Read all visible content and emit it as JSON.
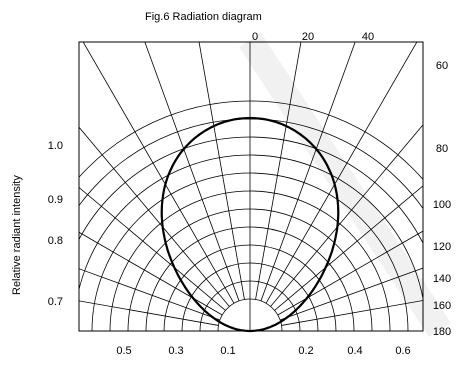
{
  "chart_data": {
    "type": "polar",
    "title": "Fig.6 Radiation diagram",
    "ylabel": "Relative radiant intensity",
    "angle_tick_labels_top": [
      "0",
      "20",
      "40"
    ],
    "angle_tick_labels_right": [
      "60",
      "80",
      "100",
      "120",
      "140",
      "160",
      "180"
    ],
    "radial_tick_labels_left": [
      "1.0",
      "0.9",
      "0.8",
      "0.7"
    ],
    "bottom_tick_labels_left": [
      "0.5",
      "0.3",
      "0.1"
    ],
    "bottom_tick_labels_right": [
      "0.2",
      "0.4",
      "0.6"
    ],
    "series": [
      {
        "angles_deg": [
          0,
          20,
          40,
          60,
          80,
          100,
          120,
          140,
          160,
          180
        ],
        "values": [
          1.0,
          0.93,
          0.81,
          0.72,
          0.65,
          0.58,
          0.49,
          0.4,
          0.37,
          0.37
        ]
      }
    ],
    "grid": true
  }
}
